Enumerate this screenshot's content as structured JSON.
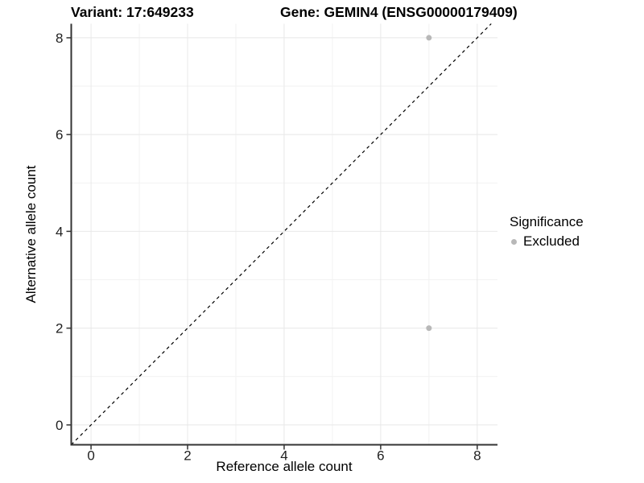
{
  "title": {
    "variant": "Variant: 17:649233",
    "gene": "Gene: GEMIN4 (ENSG00000179409)"
  },
  "chart_data": {
    "type": "scatter",
    "xlabel": "Reference allele count",
    "ylabel": "Alternative allele count",
    "xlim": [
      -0.41,
      8.42
    ],
    "ylim": [
      -0.41,
      8.29
    ],
    "x_ticks": [
      0,
      2,
      4,
      6,
      8
    ],
    "y_ticks": [
      0,
      2,
      4,
      6,
      8
    ],
    "x_minor_gridlines": [
      1,
      3,
      5,
      7
    ],
    "y_minor_gridlines": [
      1,
      3,
      5,
      7
    ],
    "grid": true,
    "series": [
      {
        "name": "Excluded",
        "color": "#b8b8b8",
        "points": [
          {
            "x": 7,
            "y": 8
          },
          {
            "x": 7,
            "y": 2
          }
        ]
      }
    ],
    "identity_line": {
      "slope": 1,
      "intercept": 0,
      "style": "dashed",
      "color": "#000000"
    },
    "legend": {
      "title": "Significance",
      "position": "right",
      "items": [
        {
          "label": "Excluded",
          "color": "#b8b8b8"
        }
      ]
    }
  },
  "colors": {
    "background": "#ffffff",
    "major_grid": "#e8e8e8",
    "minor_grid": "#f2f2f2",
    "axis_line": "#333333",
    "tick_text": "#1f1f1f",
    "point": "#b8b8b8"
  }
}
